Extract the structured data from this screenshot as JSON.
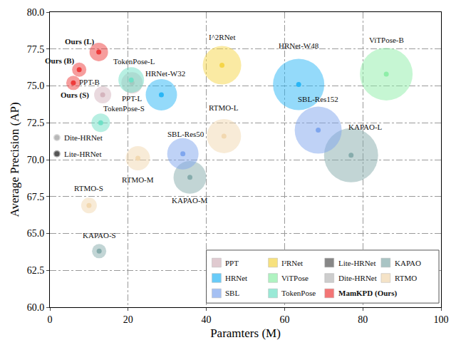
{
  "chart_data": {
    "type": "scatter",
    "x_label": "Paramters (M)",
    "y_label": "Average Precision (AP)",
    "xlim": [
      0,
      100
    ],
    "ylim": [
      60,
      80
    ],
    "xticks": [
      0,
      20,
      40,
      60,
      80,
      100
    ],
    "yticks": [
      {
        "value": 60,
        "label": "60.0"
      },
      {
        "value": 62.5,
        "label": "62.5"
      },
      {
        "value": 65,
        "label": "65.0"
      },
      {
        "value": 67.5,
        "label": "67.5"
      },
      {
        "value": 70,
        "label": "70.0"
      },
      {
        "value": 72.5,
        "label": "72.5"
      },
      {
        "value": 75,
        "label": "75.0"
      },
      {
        "value": 77.5,
        "label": "77.5"
      },
      {
        "value": 80,
        "label": "80.0"
      }
    ],
    "grid": true,
    "legend": "lower right",
    "series": [
      {
        "name": "PPT",
        "color": "#d4b4bd",
        "x": [
          13.5,
          21
        ],
        "y": [
          74.4,
          75.2
        ],
        "size": [
          12,
          15
        ],
        "labels": [
          "PPT-B",
          "PPT-L"
        ]
      },
      {
        "name": "I²RNet",
        "color": "#f5d547",
        "x": [
          44
        ],
        "y": [
          76.4
        ],
        "size": [
          27
        ],
        "labels": [
          "I^2RNet"
        ]
      },
      {
        "name": "Lite-HRNet",
        "color": "#555555",
        "x": [
          1.8
        ],
        "y": [
          70.4
        ],
        "size": [
          5
        ],
        "labels": [
          "Lite-HRNet"
        ]
      },
      {
        "name": "KAPAO",
        "color": "#86acac",
        "x": [
          12.6,
          35.8,
          77
        ],
        "y": [
          63.8,
          68.8,
          70.3
        ],
        "size": [
          10,
          23,
          38
        ],
        "labels": [
          "KAPAO-S",
          "KAPAO-M",
          "KAPAO-L"
        ]
      },
      {
        "name": "HRNet",
        "color": "#29b6f6",
        "x": [
          28.5,
          63.6
        ],
        "y": [
          74.4,
          75.1
        ],
        "size": [
          22,
          36
        ],
        "labels": [
          "HRNet-W32",
          "HRNet-W48"
        ]
      },
      {
        "name": "ViTPose",
        "color": "#8eeea8",
        "x": [
          86
        ],
        "y": [
          75.8
        ],
        "size": [
          37
        ],
        "labels": [
          "ViTPose-B"
        ]
      },
      {
        "name": "Dite-HRNet",
        "color": "#b8b8b8",
        "x": [
          1.8
        ],
        "y": [
          71.5
        ],
        "size": [
          5
        ],
        "labels": [
          "Dite-HRNet"
        ]
      },
      {
        "name": "RTMO",
        "color": "#f2d8b0",
        "x": [
          10,
          22.5,
          44.5
        ],
        "y": [
          66.9,
          70.1,
          71.6
        ],
        "size": [
          11,
          17,
          24
        ],
        "labels": [
          "RTMO-S",
          "RTMO-M",
          "RTMO-L"
        ]
      },
      {
        "name": "SBL",
        "color": "#7fa6ee",
        "x": [
          34,
          68.6
        ],
        "y": [
          70.4,
          72.0
        ],
        "size": [
          22,
          33
        ],
        "labels": [
          "SBL-Res50",
          "SBL-Res152"
        ]
      },
      {
        "name": "TokenPose",
        "color": "#6fe0c6",
        "x": [
          13,
          20.8
        ],
        "y": [
          72.5,
          75.4
        ],
        "size": [
          13,
          18
        ],
        "labels": [
          "TokenPose-S",
          "TokenPose-L"
        ]
      },
      {
        "name": "MamKPD (Ours)",
        "color": "#ee3b3b",
        "x": [
          12.5,
          7.5,
          6
        ],
        "y": [
          77.3,
          76.1,
          75.2
        ],
        "size": [
          13,
          10,
          10
        ],
        "labels": [
          "Ours (L)",
          "Ours (B)",
          "Ours (S)"
        ]
      }
    ]
  }
}
